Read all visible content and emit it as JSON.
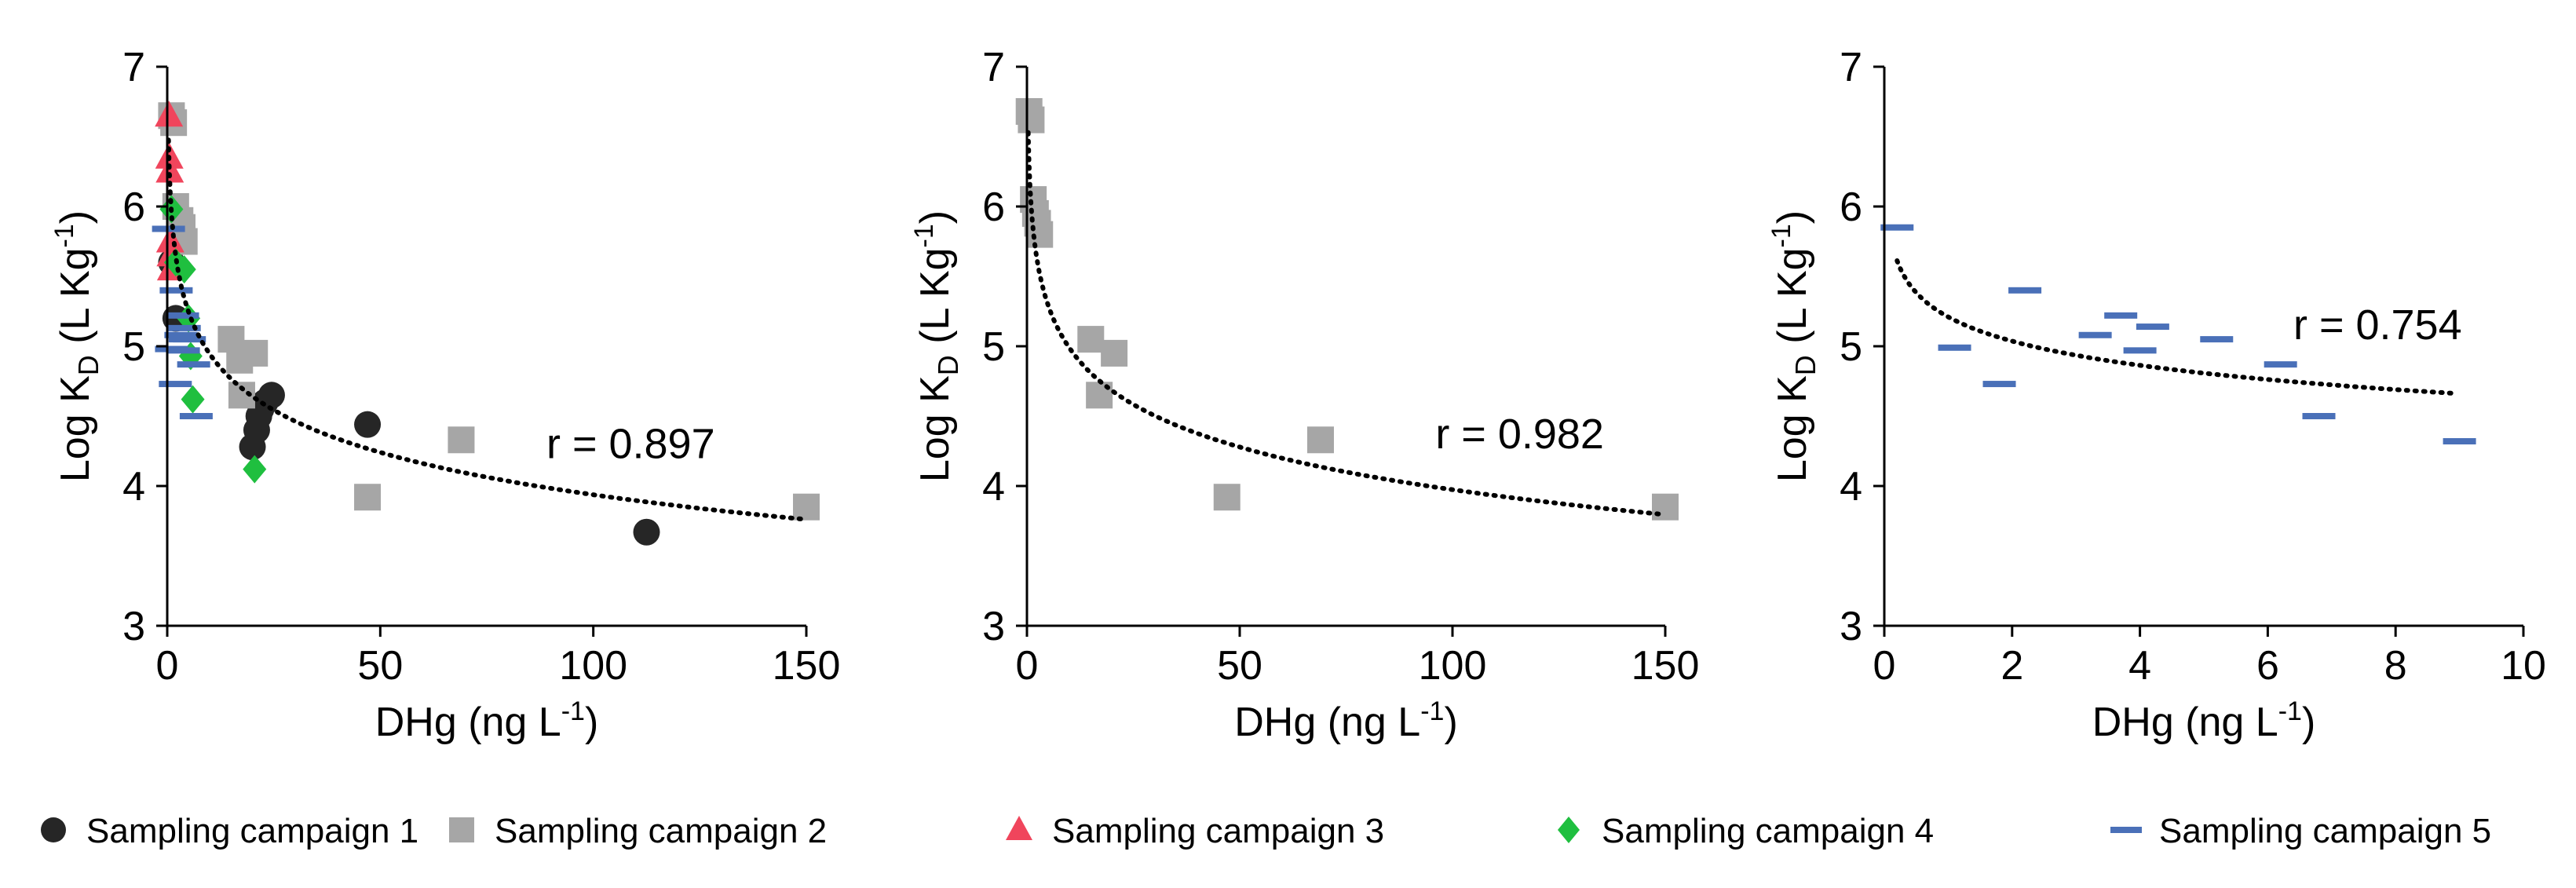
{
  "colors": {
    "campaign1": "#262626",
    "campaign2": "#a6a6a6",
    "campaign3": "#f0455c",
    "campaign4": "#1fbf3f",
    "campaign5": "#4a70b8",
    "axis": "#000000",
    "fit": "#000000"
  },
  "legend": [
    {
      "label": "Sampling campaign 1",
      "marker": "circle",
      "color": "#262626"
    },
    {
      "label": "Sampling campaign 2",
      "marker": "square",
      "color": "#a6a6a6"
    },
    {
      "label": "Sampling campaign 3",
      "marker": "triangle",
      "color": "#f0455c"
    },
    {
      "label": "Sampling campaign 4",
      "marker": "diamond",
      "color": "#1fbf3f"
    },
    {
      "label": "Sampling campaign 5",
      "marker": "dash",
      "color": "#4a70b8"
    }
  ],
  "chart_data": [
    {
      "type": "scatter",
      "title": "",
      "xlabel": "DHg (ng L",
      "xlabel_sup": "-1",
      "xlabel_end": ")",
      "ylabel": "Log K",
      "ylabel_sub": "D",
      "ylabel_mid": " (L Kg",
      "ylabel_sup": "-1",
      "ylabel_end": ")",
      "xlim": [
        0,
        150
      ],
      "ylim": [
        3,
        7
      ],
      "xticks": [
        0,
        50,
        100,
        150
      ],
      "yticks": [
        3,
        4,
        5,
        6,
        7
      ],
      "annotation": "r = 0.897",
      "annotation_at": [
        89,
        4.2
      ],
      "fit": {
        "a": 5.95,
        "b": -0.437,
        "xmin": 0.3,
        "xmax": 149
      },
      "series": [
        {
          "name": "Sampling campaign 1",
          "marker": "circle",
          "color": "#262626",
          "x": [
            1.0,
            2.0,
            20.0,
            21.0,
            21.5,
            22.0,
            23.0,
            24.5,
            47.0,
            112.5
          ],
          "y": [
            5.6,
            5.2,
            4.28,
            4.4,
            4.5,
            4.55,
            4.6,
            4.65,
            4.44,
            3.67
          ]
        },
        {
          "name": "Sampling campaign 2",
          "marker": "square",
          "color": "#a6a6a6",
          "x": [
            1.0,
            1.5,
            2.0,
            3.0,
            3.5,
            4.0,
            15.0,
            17.0,
            17.5,
            20.5,
            47.0,
            69.0,
            150.0
          ],
          "y": [
            6.65,
            6.6,
            6.0,
            5.9,
            5.85,
            5.75,
            5.05,
            4.9,
            4.65,
            4.95,
            3.92,
            4.33,
            3.85
          ]
        },
        {
          "name": "Sampling campaign 3",
          "marker": "triangle",
          "color": "#f0455c",
          "x": [
            0.4,
            0.5,
            0.6,
            0.7,
            0.8,
            0.9
          ],
          "y": [
            6.65,
            6.35,
            6.25,
            5.75,
            5.65,
            5.55
          ]
        },
        {
          "name": "Sampling campaign 4",
          "marker": "diamond",
          "color": "#1fbf3f",
          "x": [
            1.0,
            2.0,
            4.0,
            5.0,
            5.5,
            6.0,
            20.5
          ],
          "y": [
            5.98,
            5.6,
            5.55,
            5.2,
            4.93,
            4.62,
            4.12
          ]
        },
        {
          "name": "Sampling campaign 5",
          "marker": "dash",
          "color": "#4a70b8",
          "x": [
            0.3,
            1.0,
            1.9,
            2.1,
            3.2,
            3.6,
            3.8,
            4.0,
            4.2,
            5.2,
            6.2,
            6.8
          ],
          "y": [
            5.84,
            4.98,
            4.73,
            5.4,
            5.08,
            5.22,
            4.97,
            5.13,
            5.05,
            5.05,
            4.87,
            4.5
          ]
        }
      ]
    },
    {
      "type": "scatter",
      "title": "",
      "xlabel": "DHg (ng L",
      "xlabel_sup": "-1",
      "xlabel_end": ")",
      "ylabel": "Log K",
      "ylabel_sub": "D",
      "ylabel_mid": " (L Kg",
      "ylabel_sup": "-1",
      "ylabel_end": ")",
      "xlim": [
        0,
        150
      ],
      "ylim": [
        3,
        7
      ],
      "xticks": [
        0,
        50,
        100,
        150
      ],
      "yticks": [
        3,
        4,
        5,
        6,
        7
      ],
      "annotation": "r = 0.982",
      "annotation_at": [
        96,
        4.27
      ],
      "fit": {
        "a": 6.0,
        "b": -0.44,
        "xmin": 0.3,
        "xmax": 149
      },
      "series": [
        {
          "name": "Sampling campaign 2",
          "marker": "square",
          "color": "#a6a6a6",
          "x": [
            0.5,
            1.0,
            1.5,
            2.0,
            2.5,
            3.0,
            15.0,
            17.0,
            20.5,
            47.0,
            69.0,
            150.0
          ],
          "y": [
            6.68,
            6.62,
            6.05,
            5.95,
            5.88,
            5.8,
            5.05,
            4.65,
            4.95,
            3.92,
            4.33,
            3.85
          ]
        }
      ]
    },
    {
      "type": "scatter",
      "title": "",
      "xlabel": "DHg (ng L",
      "xlabel_sup": "-1",
      "xlabel_end": ")",
      "ylabel": "Log K",
      "ylabel_sub": "D",
      "ylabel_mid": " (L Kg",
      "ylabel_sup": "-1",
      "ylabel_end": ")",
      "xlim": [
        0,
        10
      ],
      "ylim": [
        3,
        7
      ],
      "xticks": [
        0,
        2,
        4,
        6,
        8,
        10
      ],
      "yticks": [
        3,
        4,
        5,
        6,
        7
      ],
      "annotation": "r = 0.754",
      "annotation_at": [
        6.4,
        5.05
      ],
      "fit": {
        "a": 5.21,
        "b": -0.25,
        "xmin": 0.2,
        "xmax": 8.9
      },
      "series": [
        {
          "name": "Sampling campaign 5",
          "marker": "dash",
          "color": "#4a70b8",
          "x": [
            0.2,
            1.1,
            1.8,
            2.2,
            3.3,
            3.7,
            4.0,
            4.2,
            5.2,
            6.2,
            6.8,
            9.0
          ],
          "y": [
            5.85,
            4.99,
            4.73,
            5.4,
            5.08,
            5.22,
            4.97,
            5.14,
            5.05,
            4.87,
            4.5,
            4.32
          ]
        }
      ]
    }
  ]
}
